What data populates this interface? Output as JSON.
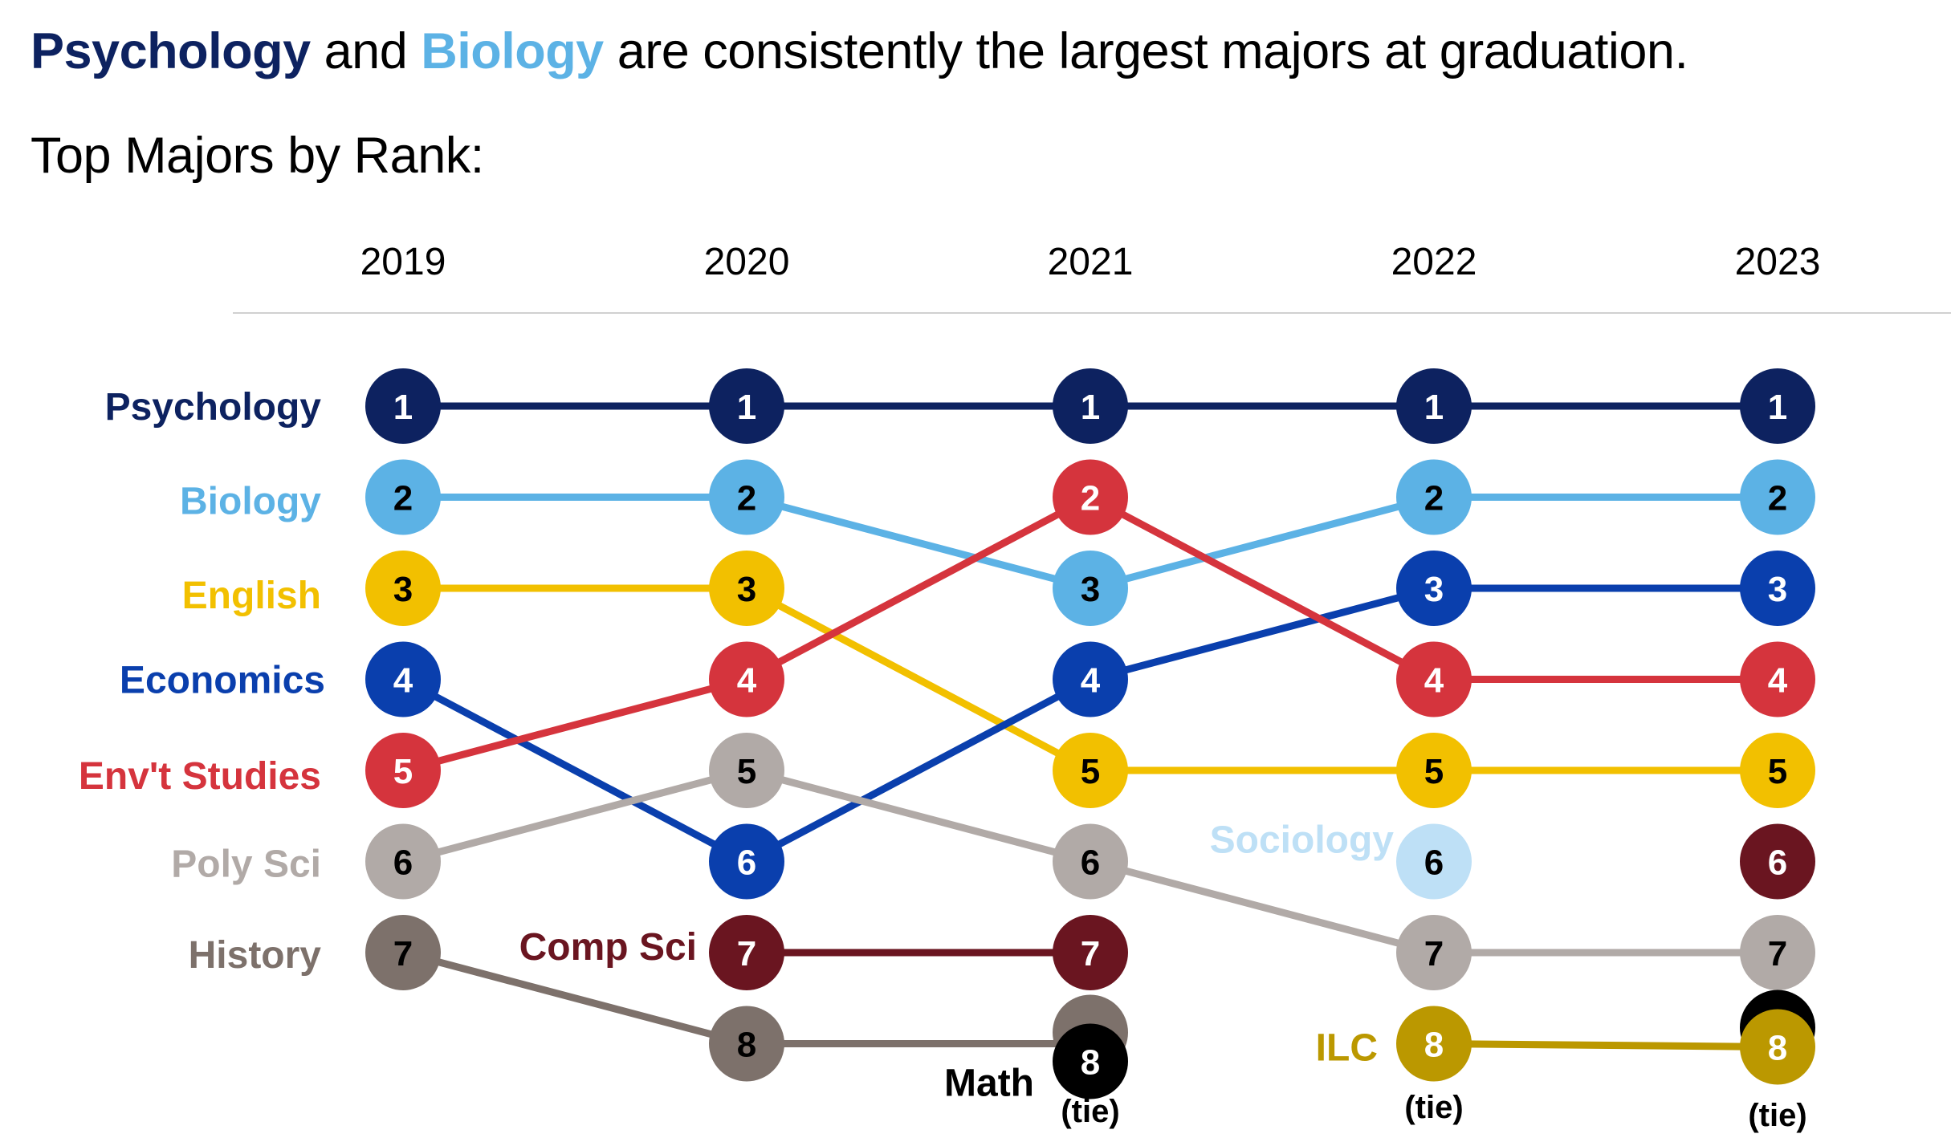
{
  "headline": {
    "major1": "Psychology",
    "conj": " and ",
    "major2": "Biology",
    "rest": " are consistently the largest majors at graduation."
  },
  "subtitle": "Top Majors by Rank:",
  "chart_data": {
    "type": "line",
    "title": "Top Majors by Rank:",
    "x": [
      "2019",
      "2020",
      "2021",
      "2022",
      "2023"
    ],
    "ylim": [
      1,
      8
    ],
    "y_inverted": true,
    "series": [
      {
        "name": "Psychology",
        "color": "#0d2260",
        "text_color": "#ffffff",
        "values": [
          1,
          1,
          1,
          1,
          1
        ]
      },
      {
        "name": "Biology",
        "color": "#5cb2e5",
        "text_color": "#000000",
        "values": [
          2,
          2,
          3,
          2,
          2
        ]
      },
      {
        "name": "English",
        "color": "#f2c000",
        "text_color": "#000000",
        "values": [
          3,
          3,
          5,
          5,
          5
        ]
      },
      {
        "name": "Economics",
        "color": "#0a3fad",
        "text_color": "#ffffff",
        "values": [
          4,
          6,
          4,
          3,
          3
        ]
      },
      {
        "name": "Env't Studies",
        "color": "#d5343d",
        "text_color": "#ffffff",
        "values": [
          5,
          4,
          2,
          4,
          4
        ]
      },
      {
        "name": "Poly Sci",
        "color": "#b1aaa7",
        "text_color": "#000000",
        "values": [
          6,
          5,
          6,
          7,
          7
        ]
      },
      {
        "name": "History",
        "color": "#7d716b",
        "text_color": "#000000",
        "values": [
          7,
          8,
          8,
          null,
          null
        ]
      },
      {
        "name": "Comp Sci",
        "color": "#6a1520",
        "text_color": "#ffffff",
        "values": [
          null,
          7,
          7,
          null,
          6
        ]
      },
      {
        "name": "Math",
        "color": "#000000",
        "text_color": "#ffffff",
        "values": [
          null,
          null,
          8,
          null,
          8
        ]
      },
      {
        "name": "Sociology",
        "color": "#bee0f6",
        "text_color": "#000000",
        "values": [
          null,
          null,
          null,
          6,
          null
        ]
      },
      {
        "name": "ILC",
        "color": "#bb9800",
        "text_color": "#ffffff",
        "values": [
          null,
          null,
          null,
          8,
          8
        ]
      }
    ],
    "labels": [
      {
        "series": "Psychology",
        "text": "Psychology"
      },
      {
        "series": "Biology",
        "text": "Biology"
      },
      {
        "series": "English",
        "text": "English"
      },
      {
        "series": "Economics",
        "text": "Economics"
      },
      {
        "series": "Env't Studies",
        "text": "Env't Studies"
      },
      {
        "series": "Poly Sci",
        "text": "Poly Sci"
      },
      {
        "series": "History",
        "text": "History"
      },
      {
        "series": "Comp Sci",
        "text": "Comp Sci"
      },
      {
        "series": "Math",
        "text": "Math"
      },
      {
        "series": "Sociology",
        "text": "Sociology"
      },
      {
        "series": "ILC",
        "text": "ILC"
      }
    ],
    "annotations": [
      {
        "text": "(tie)",
        "x": "2021",
        "rank": 8
      },
      {
        "text": "(tie)",
        "x": "2022",
        "rank": 8
      },
      {
        "text": "(tie)",
        "x": "2023",
        "rank": 8
      }
    ]
  }
}
